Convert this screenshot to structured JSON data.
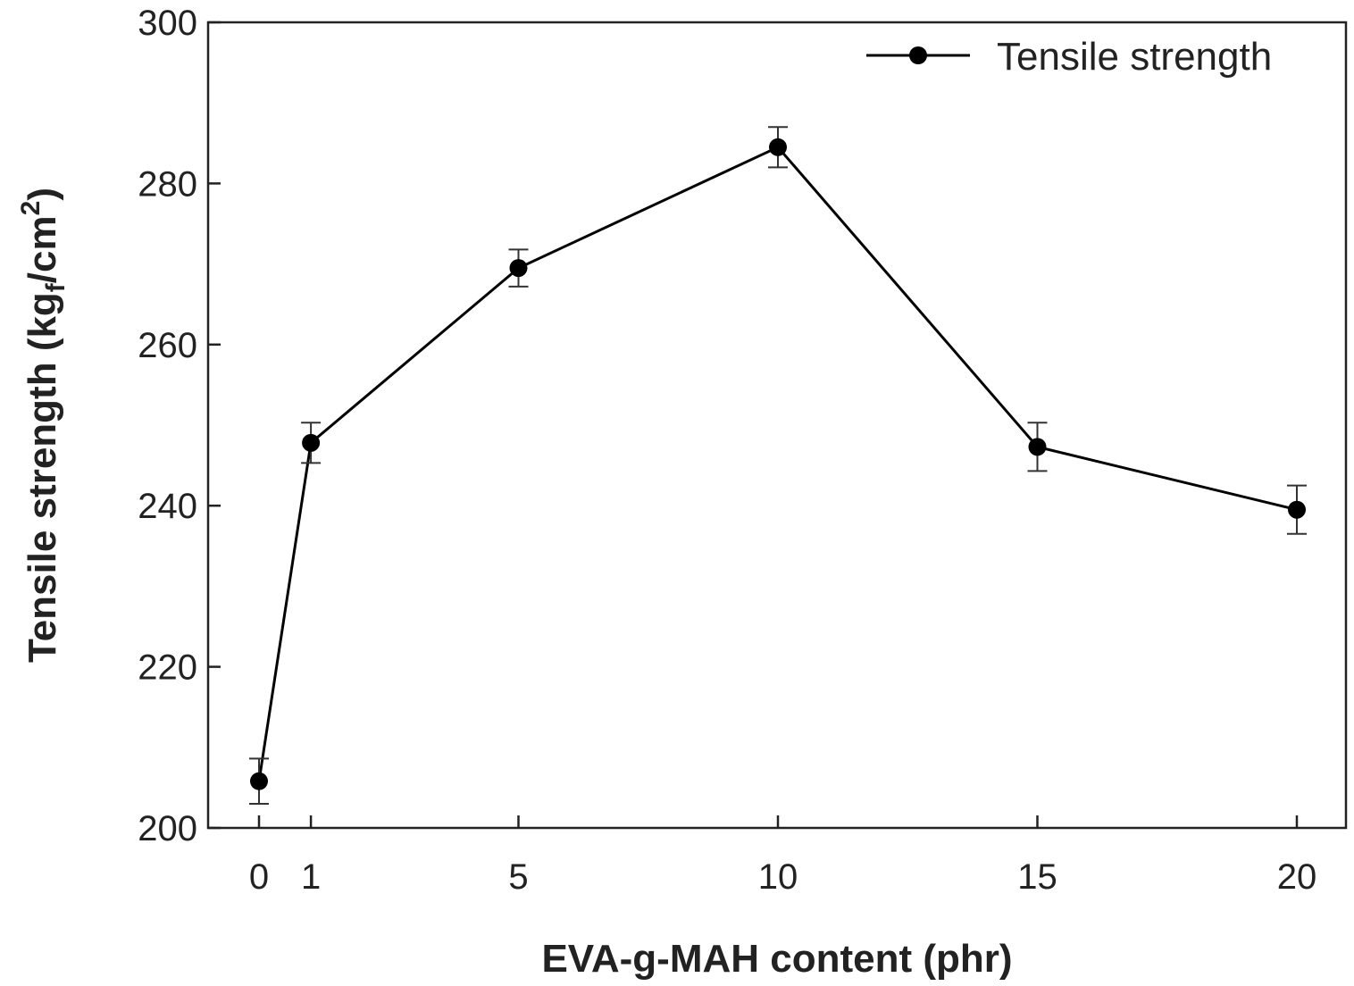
{
  "chart_data": {
    "type": "line",
    "title": "",
    "xlabel": "EVA-g-MAH content (phr)",
    "ylabel_main": "Tensile strength (kg",
    "ylabel_sub": "f",
    "ylabel_unit": "/cm",
    "ylabel_sup": "2",
    "ylabel_close": ")",
    "x_ticks": [
      "0",
      "1",
      "5",
      "10",
      "15",
      "20"
    ],
    "y_ticks": [
      "200",
      "220",
      "240",
      "260",
      "280",
      "300"
    ],
    "xlim": [
      -0.5,
      21.5
    ],
    "ylim": [
      200,
      300
    ],
    "grid": false,
    "legend": "top-right",
    "series": [
      {
        "name": "Tensile strength",
        "color": "#000000",
        "marker": "circle",
        "x": [
          0,
          1,
          5,
          10,
          15,
          20
        ],
        "y": [
          205.8,
          247.8,
          269.5,
          284.5,
          247.3,
          239.5
        ],
        "err": [
          2.8,
          2.5,
          2.3,
          2.5,
          3.0,
          3.0
        ]
      }
    ]
  }
}
